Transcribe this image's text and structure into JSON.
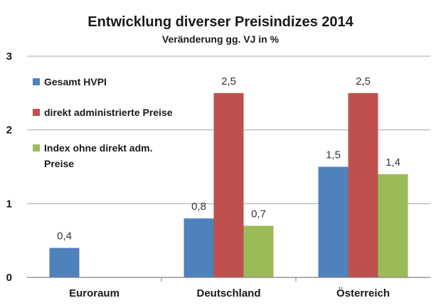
{
  "chart_data": {
    "type": "bar",
    "title": "Entwicklung diverser Preisindizes 2014",
    "subtitle": "Veränderung gg. VJ in %",
    "categories": [
      "Euroraum",
      "Deutschland",
      "Österreich"
    ],
    "series": [
      {
        "name": "Gesamt HVPI",
        "color": "#4f81bd",
        "values": [
          0.4,
          0.8,
          1.5
        ],
        "labels": [
          "0,4",
          "0,8",
          "1,5"
        ]
      },
      {
        "name": "direkt administrierte Preise",
        "color": "#c0504d",
        "values": [
          null,
          2.5,
          2.5
        ],
        "labels": [
          "",
          "2,5",
          "2,5"
        ]
      },
      {
        "name": "Index ohne direkt adm. Preise",
        "color": "#9bbb59",
        "values": [
          null,
          0.7,
          1.4
        ],
        "labels": [
          "",
          "0,7",
          "1,4"
        ]
      }
    ],
    "legend_lines": [
      [
        "Gesamt HVPI"
      ],
      [
        "direkt administrierte Preise"
      ],
      [
        "Index ohne direkt adm.",
        "Preise"
      ]
    ],
    "yticks": [
      0,
      1,
      2,
      3
    ],
    "ylim": [
      0,
      3
    ],
    "grid": true,
    "legend_position": "top-left"
  }
}
